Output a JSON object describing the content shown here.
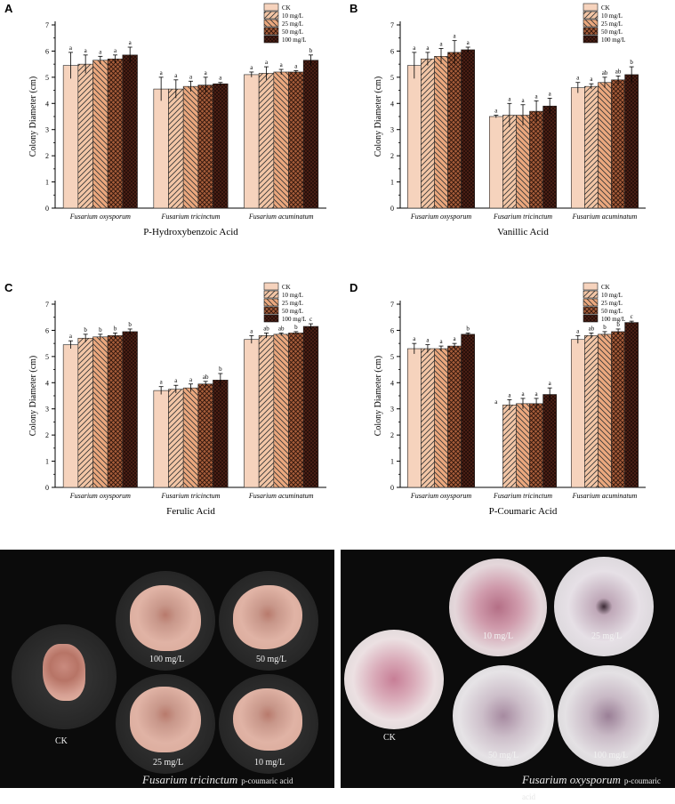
{
  "groups": [
    "Fusarium oxysporum",
    "Fusarium tricinctum",
    "Fusarium acuminatum"
  ],
  "legend": [
    "CK",
    "10 mg/L",
    "25 mg/L",
    "50 mg/L",
    "100 mg/L"
  ],
  "series_colors": [
    "#f6d3bd",
    "#f3c6a6",
    "#eba87e",
    "#a65d3a",
    "#4e2116"
  ],
  "ylabel": "Colony Diameter (cm)",
  "y_ticks": [
    "0",
    "1",
    "2",
    "3",
    "4",
    "5",
    "6",
    "7"
  ],
  "chart_data": [
    {
      "type": "bar",
      "panel": "A",
      "xlabel": "P-Hydroxybenzoic Acid",
      "ylim": [
        0,
        7
      ],
      "categories": [
        "Fusarium oxysporum",
        "Fusarium tricinctum",
        "Fusarium acuminatum"
      ],
      "series": [
        {
          "name": "CK",
          "values": [
            5.45,
            4.55,
            5.1
          ],
          "errors": [
            0.5,
            0.45,
            0.1
          ],
          "letters": [
            "a",
            "a",
            "a"
          ]
        },
        {
          "name": "10 mg/L",
          "values": [
            5.5,
            4.55,
            5.15
          ],
          "errors": [
            0.35,
            0.35,
            0.25
          ],
          "letters": [
            "a",
            "a",
            "a"
          ]
        },
        {
          "name": "25 mg/L",
          "values": [
            5.65,
            4.65,
            5.2
          ],
          "errors": [
            0.15,
            0.2,
            0.1
          ],
          "letters": [
            "a",
            "a",
            "a"
          ]
        },
        {
          "name": "50 mg/L",
          "values": [
            5.7,
            4.7,
            5.2
          ],
          "errors": [
            0.15,
            0.3,
            0.05
          ],
          "letters": [
            "a",
            "a",
            "a"
          ]
        },
        {
          "name": "100 mg/L",
          "values": [
            5.85,
            4.75,
            5.65
          ],
          "errors": [
            0.3,
            0.05,
            0.2
          ],
          "letters": [
            "a",
            "a",
            "b"
          ]
        }
      ]
    },
    {
      "type": "bar",
      "panel": "B",
      "xlabel": "Vanillic Acid",
      "ylim": [
        0,
        7
      ],
      "categories": [
        "Fusarium oxysporum",
        "Fusarium tricinctum",
        "Fusarium acuminatum"
      ],
      "series": [
        {
          "name": "CK",
          "values": [
            5.45,
            3.5,
            4.6
          ],
          "errors": [
            0.5,
            0.05,
            0.2
          ],
          "letters": [
            "a",
            "a",
            "a"
          ]
        },
        {
          "name": "10 mg/L",
          "values": [
            5.7,
            3.55,
            4.65
          ],
          "errors": [
            0.25,
            0.45,
            0.1
          ],
          "letters": [
            "a",
            "a",
            "a"
          ]
        },
        {
          "name": "25 mg/L",
          "values": [
            5.8,
            3.55,
            4.8
          ],
          "errors": [
            0.3,
            0.4,
            0.2
          ],
          "letters": [
            "a",
            "a",
            "ab"
          ]
        },
        {
          "name": "50 mg/L",
          "values": [
            5.95,
            3.7,
            4.9
          ],
          "errors": [
            0.45,
            0.4,
            0.15
          ],
          "letters": [
            "a",
            "a",
            "ab"
          ]
        },
        {
          "name": "100 mg/L",
          "values": [
            6.05,
            3.9,
            5.1
          ],
          "errors": [
            0.1,
            0.3,
            0.3
          ],
          "letters": [
            "a",
            "a",
            "b"
          ]
        }
      ]
    },
    {
      "type": "bar",
      "panel": "C",
      "xlabel": "Ferulic Acid",
      "ylim": [
        0,
        7
      ],
      "categories": [
        "Fusarium oxysporum",
        "Fusarium tricinctum",
        "Fusarium acuminatum"
      ],
      "series": [
        {
          "name": "CK",
          "values": [
            5.45,
            3.7,
            5.65
          ],
          "errors": [
            0.15,
            0.15,
            0.15
          ],
          "letters": [
            "a",
            "a",
            "a"
          ]
        },
        {
          "name": "10 mg/L",
          "values": [
            5.7,
            3.75,
            5.8
          ],
          "errors": [
            0.15,
            0.15,
            0.1
          ],
          "letters": [
            "b",
            "a",
            "ab"
          ]
        },
        {
          "name": "25 mg/L",
          "values": [
            5.75,
            3.8,
            5.85
          ],
          "errors": [
            0.1,
            0.15,
            0.05
          ],
          "letters": [
            "b",
            "a",
            "ab"
          ]
        },
        {
          "name": "50 mg/L",
          "values": [
            5.8,
            3.95,
            5.9
          ],
          "errors": [
            0.1,
            0.1,
            0.05
          ],
          "letters": [
            "b",
            "ab",
            "b"
          ]
        },
        {
          "name": "100 mg/L",
          "values": [
            5.95,
            4.1,
            6.15
          ],
          "errors": [
            0.1,
            0.25,
            0.1
          ],
          "letters": [
            "b",
            "b",
            "c"
          ]
        }
      ]
    },
    {
      "type": "bar",
      "panel": "D",
      "xlabel": "P-Coumaric Acid",
      "ylim": [
        0,
        7
      ],
      "categories": [
        "Fusarium oxysporum",
        "Fusarium tricinctum",
        "Fusarium acuminatum"
      ],
      "series": [
        {
          "name": "CK",
          "values": [
            5.3,
            0,
            5.65
          ],
          "errors": [
            0.2,
            0,
            0.15
          ],
          "letters": [
            "a",
            "a",
            "a"
          ]
        },
        {
          "name": "10 mg/L",
          "values": [
            5.3,
            3.15,
            5.8
          ],
          "errors": [
            0.15,
            0.2,
            0.1
          ],
          "letters": [
            "a",
            "a",
            "ab"
          ]
        },
        {
          "name": "25 mg/L",
          "values": [
            5.3,
            3.2,
            5.85
          ],
          "errors": [
            0.1,
            0.2,
            0.1
          ],
          "letters": [
            "a",
            "a",
            "b"
          ]
        },
        {
          "name": "50 mg/L",
          "values": [
            5.4,
            3.2,
            5.95
          ],
          "errors": [
            0.1,
            0.2,
            0.1
          ],
          "letters": [
            "a",
            "a",
            "b"
          ]
        },
        {
          "name": "100 mg/L",
          "values": [
            5.85,
            3.55,
            6.3
          ],
          "errors": [
            0.05,
            0.25,
            0.05
          ],
          "letters": [
            "b",
            "a",
            "c"
          ]
        }
      ]
    }
  ],
  "photos": {
    "left": {
      "species": "Fusarium tricinctum",
      "treatment": "p-coumaric acid",
      "dishes": [
        {
          "label": "CK",
          "value": "CK"
        },
        {
          "label": "100 mg/L",
          "value": "100"
        },
        {
          "label": "50 mg/L",
          "value": "50"
        },
        {
          "label": "25 mg/L",
          "value": "25"
        },
        {
          "label": "10 mg/L",
          "value": "10"
        }
      ]
    },
    "right": {
      "species": "Fusarium oxysporum",
      "treatment": "p-coumaric acid",
      "dishes": [
        {
          "label": "CK",
          "value": "CK"
        },
        {
          "label": "10 mg/L",
          "value": "10"
        },
        {
          "label": "25 mg/L",
          "value": "25"
        },
        {
          "label": "50 mg/L",
          "value": "50"
        },
        {
          "label": "100 mg/L",
          "value": "100"
        }
      ]
    }
  }
}
